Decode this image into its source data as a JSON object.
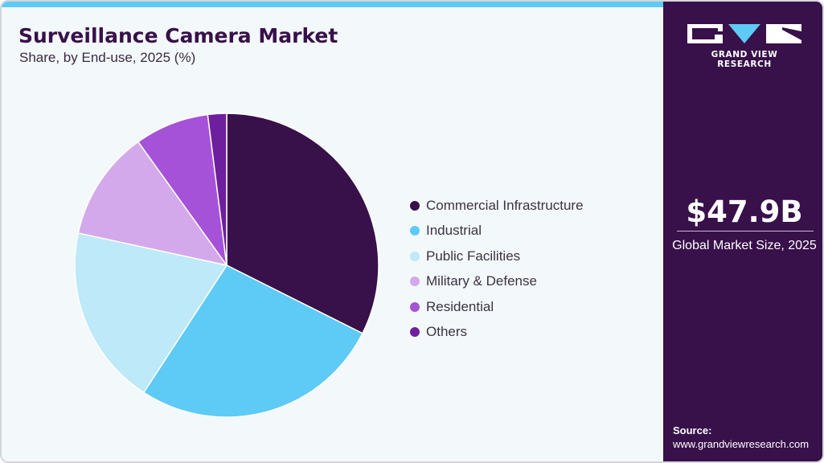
{
  "header": {
    "title": "Surveillance Camera Market",
    "subtitle": "Share, by End-use, 2025 (%)"
  },
  "brand": {
    "name": "GRAND VIEW RESEARCH",
    "colors": {
      "panel": "#38104a",
      "accent": "#5ecaf6",
      "background": "#f3f8fb"
    }
  },
  "summary": {
    "value": "$47.9B",
    "label": "Global Market Size, 2025"
  },
  "source": {
    "label": "Source:",
    "url": "www.grandviewresearch.com"
  },
  "legend": [
    {
      "label": "Commercial Infrastructure",
      "color": "#38104a"
    },
    {
      "label": "Industrial",
      "color": "#5ecaf6"
    },
    {
      "label": "Public Facilities",
      "color": "#bde9f9"
    },
    {
      "label": "Military & Defense",
      "color": "#d4a9ec"
    },
    {
      "label": "Residential",
      "color": "#a652d8"
    },
    {
      "label": "Others",
      "color": "#6d1f9e"
    }
  ],
  "chart_data": {
    "type": "pie",
    "title": "Surveillance Camera Market",
    "subtitle": "Share, by End-use, 2025 (%)",
    "categories": [
      "Commercial Infrastructure",
      "Industrial",
      "Public Facilities",
      "Military & Defense",
      "Residential",
      "Others"
    ],
    "values": [
      32.4,
      26.8,
      19.2,
      11.7,
      7.9,
      2.0
    ],
    "colors": [
      "#38104a",
      "#5ecaf6",
      "#bde9f9",
      "#d4a9ec",
      "#a652d8",
      "#6d1f9e"
    ],
    "start_angle": "12 o'clock, clockwise",
    "legend_position": "right",
    "data_labels": false
  }
}
